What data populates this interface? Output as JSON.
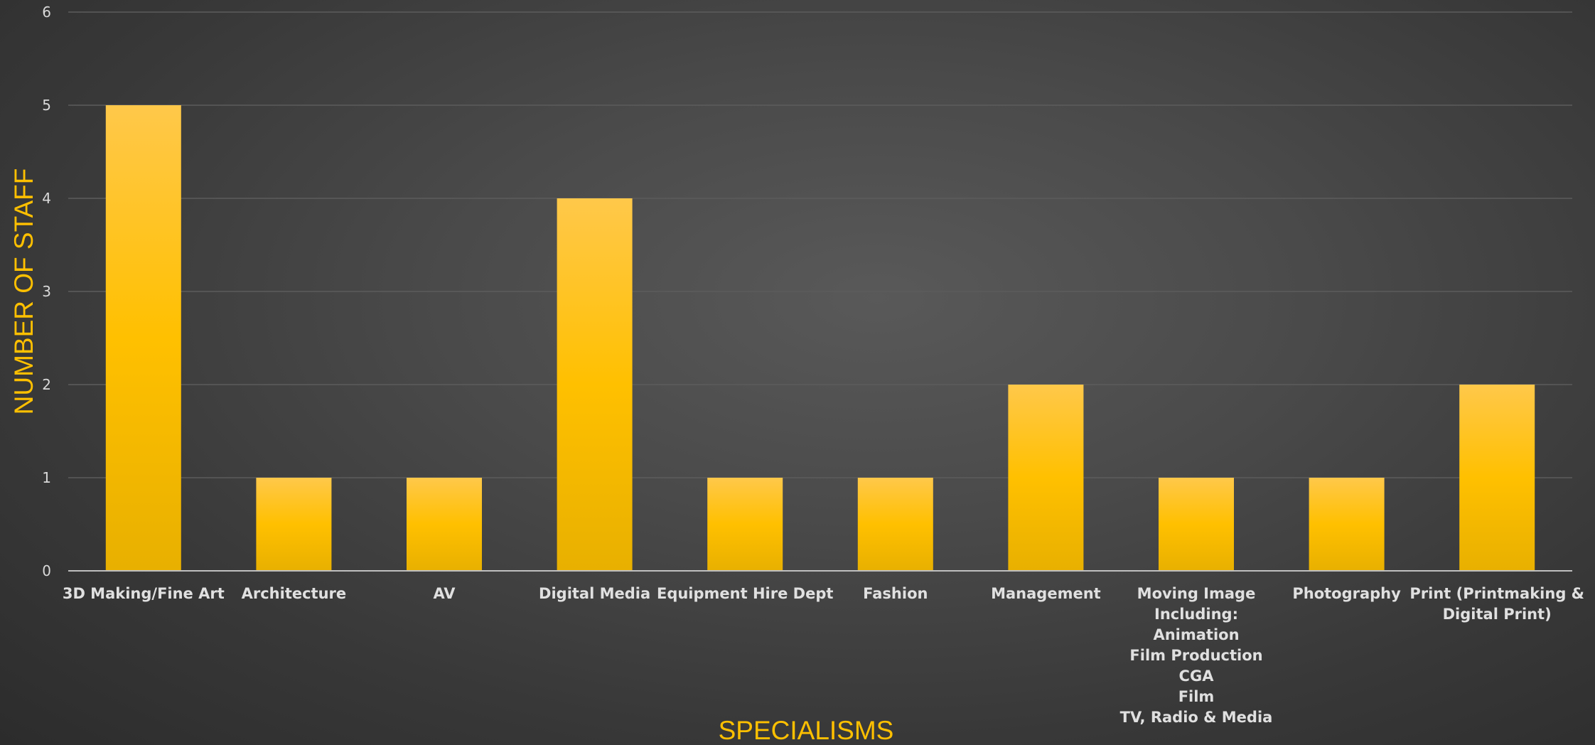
{
  "chart_data": {
    "type": "bar",
    "categories": [
      "3D Making/Fine Art",
      "Architecture",
      "AV",
      "Digital Media",
      "Equipment Hire Dept",
      "Fashion",
      "Management",
      "Moving Image\nIncluding:\nAnimation\nFilm Production\nCGA\nFilm\nTV, Radio & Media",
      "Photography",
      "Print (Printmaking &\nDigital Print)"
    ],
    "values": [
      5,
      1,
      1,
      4,
      1,
      1,
      2,
      1,
      1,
      2
    ],
    "title": "",
    "xlabel": "SPECIALISMS",
    "ylabel": "NUMBER OF STAFF",
    "ylim": [
      0,
      6
    ],
    "yticks": [
      0,
      1,
      2,
      3,
      4,
      5,
      6
    ],
    "grid": true,
    "legend": "none",
    "colors": {
      "bar_top": "#ffc84a",
      "bar_mid": "#ffc000",
      "bar_bottom": "#e8b000",
      "title": "#ffc000",
      "gridline": "#5c5c5c",
      "axis_line": "#bfbfbf",
      "tick_text": "#d9d9d9"
    }
  }
}
